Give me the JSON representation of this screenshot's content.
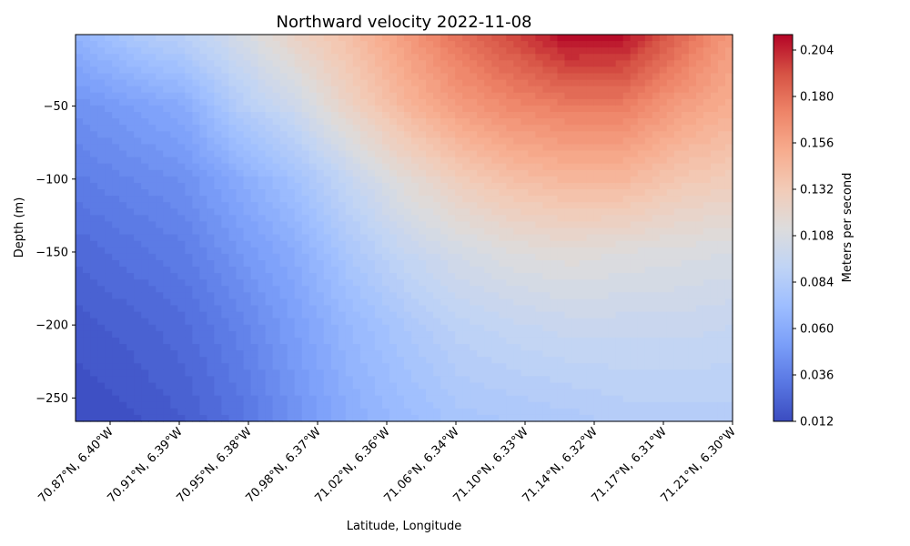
{
  "chart_data": {
    "type": "heatmap",
    "subtype": "filled-contour",
    "title": "Northward velocity 2022-11-08",
    "xlabel": "Latitude, Longitude",
    "ylabel": "Depth (m)",
    "colorbar_label": "Meters per second",
    "colormap": "coolwarm",
    "colormap_stops": [
      "#3b4cc0",
      "#5977e3",
      "#7b9ff9",
      "#9ebeff",
      "#c0d4f5",
      "#dddcdc",
      "#f2cbb7",
      "#f7ac8e",
      "#ee8468",
      "#d65244",
      "#b40426"
    ],
    "x_ticks": [
      "70.87°N, 6.40°W",
      "70.91°N, 6.39°W",
      "70.95°N, 6.38°W",
      "70.98°N, 6.37°W",
      "71.02°N, 6.36°W",
      "71.06°N, 6.34°W",
      "71.10°N, 6.33°W",
      "71.14°N, 6.32°W",
      "71.17°N, 6.31°W",
      "71.21°N, 6.30°W"
    ],
    "y_ticks": [
      -50,
      -100,
      -150,
      -200,
      -250
    ],
    "ylim": [
      -266,
      -1
    ],
    "colorbar_ticks": [
      0.012,
      0.036,
      0.06,
      0.084,
      0.108,
      0.132,
      0.156,
      0.18,
      0.204
    ],
    "colorbar_ticks_text": [
      "0.012",
      "0.036",
      "0.060",
      "0.084",
      "0.108",
      "0.132",
      "0.156",
      "0.180",
      "0.204"
    ],
    "vlim": [
      0.012,
      0.212
    ],
    "depths": [
      -1,
      -50,
      -100,
      -150,
      -200,
      -266
    ],
    "stations": [
      {
        "values": [
          0.065,
          0.045,
          0.035,
          0.025,
          0.018,
          0.012
        ]
      },
      {
        "values": [
          0.08,
          0.052,
          0.04,
          0.03,
          0.022,
          0.015
        ]
      },
      {
        "values": [
          0.09,
          0.06,
          0.045,
          0.035,
          0.027,
          0.02
        ]
      },
      {
        "values": [
          0.105,
          0.085,
          0.06,
          0.048,
          0.038,
          0.03
        ]
      },
      {
        "values": [
          0.125,
          0.1,
          0.075,
          0.06,
          0.052,
          0.045
        ]
      },
      {
        "values": [
          0.14,
          0.125,
          0.095,
          0.08,
          0.068,
          0.06
        ]
      },
      {
        "values": [
          0.16,
          0.145,
          0.115,
          0.095,
          0.08,
          0.07
        ]
      },
      {
        "values": [
          0.18,
          0.16,
          0.13,
          0.105,
          0.09,
          0.078
        ]
      },
      {
        "values": [
          0.195,
          0.17,
          0.14,
          0.112,
          0.095,
          0.08
        ]
      },
      {
        "values": [
          0.212,
          0.175,
          0.145,
          0.115,
          0.098,
          0.082
        ]
      },
      {
        "values": [
          0.21,
          0.175,
          0.145,
          0.112,
          0.098,
          0.085
        ]
      },
      {
        "values": [
          0.185,
          0.16,
          0.135,
          0.11,
          0.098,
          0.085
        ]
      },
      {
        "values": [
          0.16,
          0.15,
          0.13,
          0.108,
          0.096,
          0.086
        ]
      }
    ]
  }
}
